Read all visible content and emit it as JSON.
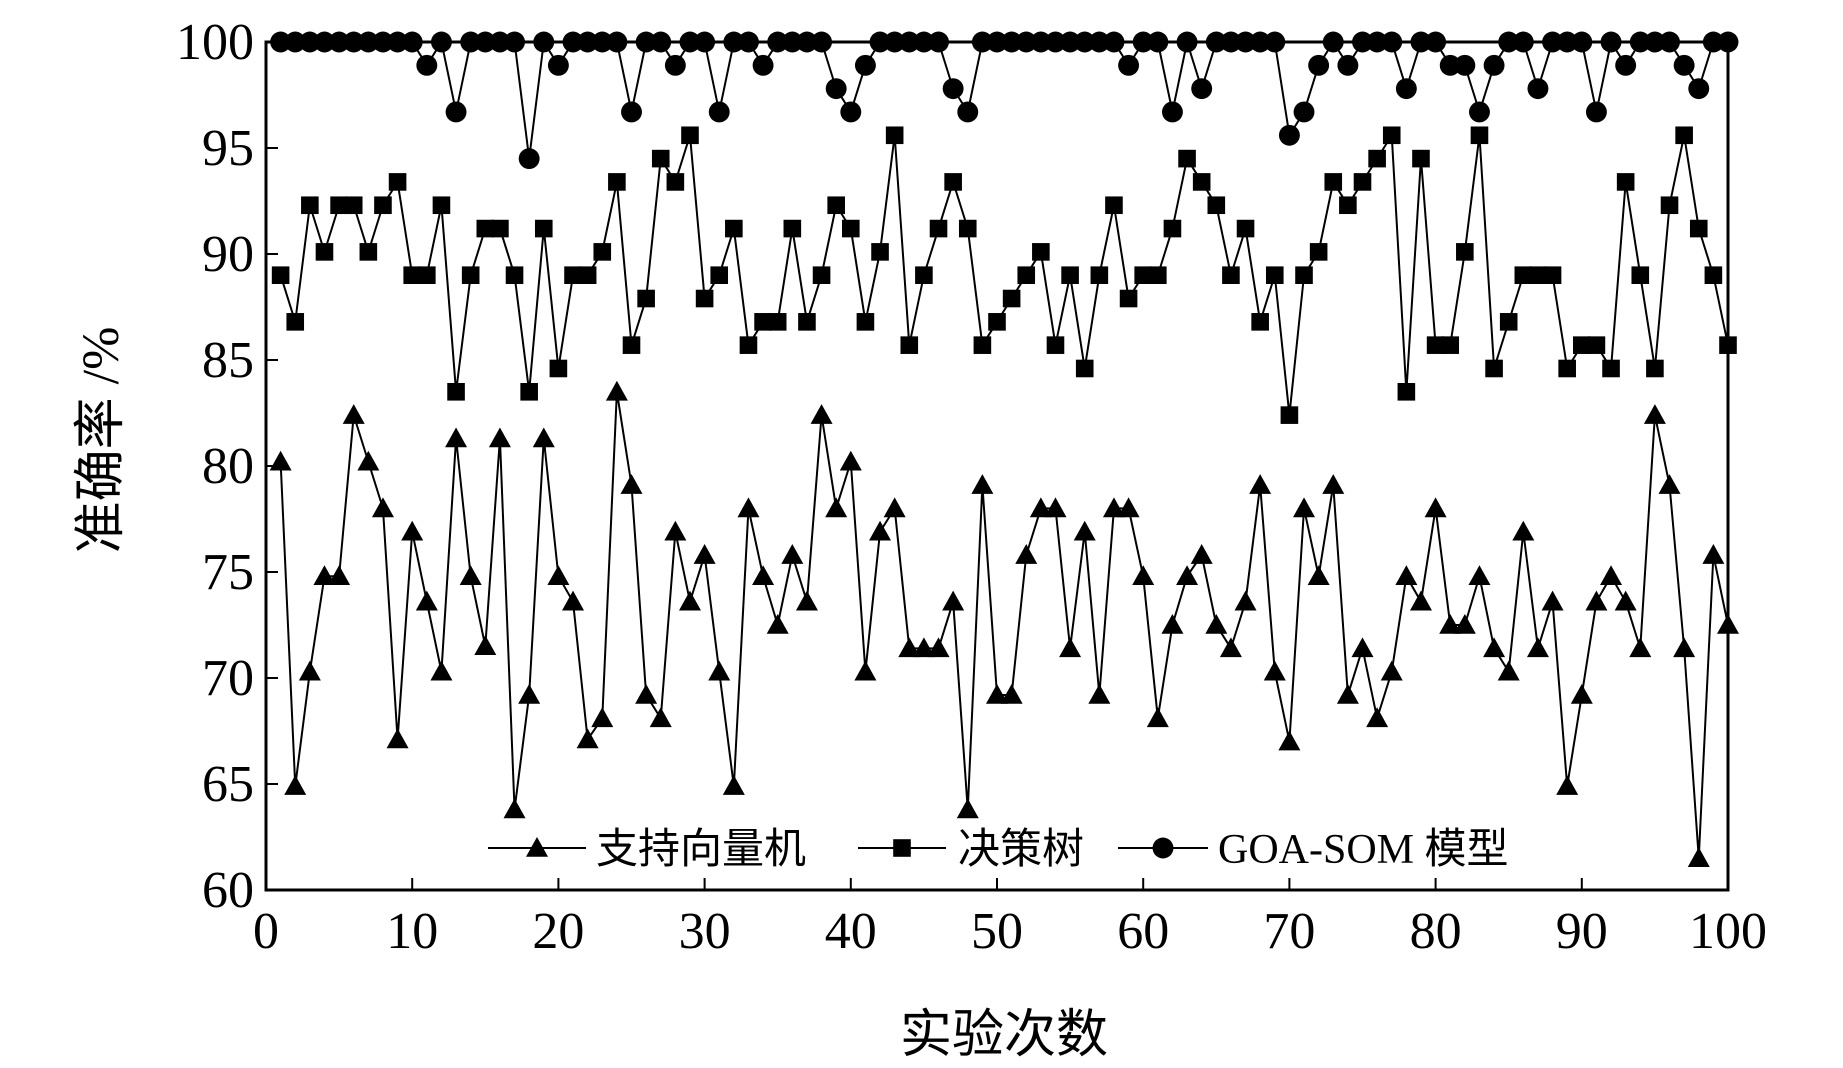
{
  "chart_data": {
    "type": "line",
    "title": "",
    "xlabel": "实验次数",
    "ylabel": "准确率 /%",
    "xlim": [
      0,
      100
    ],
    "ylim": [
      60,
      100
    ],
    "x_ticks": [
      0,
      10,
      20,
      30,
      40,
      50,
      60,
      70,
      80,
      90,
      100
    ],
    "y_ticks": [
      60,
      65,
      70,
      75,
      80,
      85,
      90,
      95,
      100
    ],
    "grid": false,
    "legend_position": "bottom",
    "x": [
      1,
      2,
      3,
      4,
      5,
      6,
      7,
      8,
      9,
      10,
      11,
      12,
      13,
      14,
      15,
      16,
      17,
      18,
      19,
      20,
      21,
      22,
      23,
      24,
      25,
      26,
      27,
      28,
      29,
      30,
      31,
      32,
      33,
      34,
      35,
      36,
      37,
      38,
      39,
      40,
      41,
      42,
      43,
      44,
      45,
      46,
      47,
      48,
      49,
      50,
      51,
      52,
      53,
      54,
      55,
      56,
      57,
      58,
      59,
      60,
      61,
      62,
      63,
      64,
      65,
      66,
      67,
      68,
      69,
      70,
      71,
      72,
      73,
      74,
      75,
      76,
      77,
      78,
      79,
      80,
      81,
      82,
      83,
      84,
      85,
      86,
      87,
      88,
      89,
      90,
      91,
      92,
      93,
      94,
      95,
      96,
      97,
      98,
      99,
      100
    ],
    "series": [
      {
        "name": "支持向量机",
        "marker": "triangle",
        "color": "#000000",
        "values": [
          80.2,
          64.9,
          70.3,
          74.8,
          74.8,
          82.4,
          80.2,
          78.0,
          67.1,
          76.9,
          73.6,
          70.3,
          81.3,
          74.8,
          71.5,
          81.3,
          63.8,
          69.2,
          81.3,
          74.8,
          73.6,
          67.1,
          68.1,
          83.5,
          79.1,
          69.2,
          68.1,
          76.9,
          73.6,
          75.8,
          70.3,
          64.9,
          78.0,
          74.8,
          72.5,
          75.8,
          73.6,
          82.4,
          78.0,
          80.2,
          70.3,
          76.9,
          78.0,
          71.4,
          71.4,
          71.4,
          73.6,
          63.8,
          79.1,
          69.2,
          69.2,
          75.8,
          78.0,
          78.0,
          71.4,
          76.9,
          69.2,
          78.0,
          78.0,
          74.8,
          68.1,
          72.5,
          74.8,
          75.8,
          72.5,
          71.4,
          73.6,
          79.1,
          70.3,
          67.0,
          78.0,
          74.8,
          79.1,
          69.2,
          71.4,
          68.1,
          70.3,
          74.8,
          73.6,
          78.0,
          72.5,
          72.5,
          74.8,
          71.4,
          70.3,
          76.9,
          71.4,
          73.6,
          64.9,
          69.2,
          73.6,
          74.8,
          73.6,
          71.4,
          82.4,
          79.1,
          71.4,
          61.5,
          75.8,
          72.5
        ]
      },
      {
        "name": "决策树",
        "marker": "square",
        "color": "#000000",
        "values": [
          89.0,
          86.8,
          92.3,
          90.1,
          92.3,
          92.3,
          90.1,
          92.3,
          93.4,
          89.0,
          89.0,
          92.3,
          83.5,
          89.0,
          91.2,
          91.2,
          89.0,
          83.5,
          91.2,
          84.6,
          89.0,
          89.0,
          90.1,
          93.4,
          85.7,
          87.9,
          94.5,
          93.4,
          95.6,
          87.9,
          89.0,
          91.2,
          85.7,
          86.8,
          86.8,
          91.2,
          86.8,
          89.0,
          92.3,
          91.2,
          86.8,
          90.1,
          95.6,
          85.7,
          89.0,
          91.2,
          93.4,
          91.2,
          85.7,
          86.8,
          87.9,
          89.0,
          90.1,
          85.7,
          89.0,
          84.6,
          89.0,
          92.3,
          87.9,
          89.0,
          89.0,
          91.2,
          94.5,
          93.4,
          92.3,
          89.0,
          91.2,
          86.8,
          89.0,
          82.4,
          89.0,
          90.1,
          93.4,
          92.3,
          93.4,
          94.5,
          95.6,
          83.5,
          94.5,
          85.7,
          85.7,
          90.1,
          95.6,
          84.6,
          86.8,
          89.0,
          89.0,
          89.0,
          84.6,
          85.7,
          85.7,
          84.6,
          93.4,
          89.0,
          84.6,
          92.3,
          95.6,
          91.2,
          89.0,
          85.7
        ]
      },
      {
        "name": "GOA-SOM 模型",
        "marker": "circle",
        "color": "#000000",
        "values": [
          100,
          100,
          100,
          100,
          100,
          100,
          100,
          100,
          100,
          100,
          98.9,
          100,
          96.7,
          100,
          100,
          100,
          100,
          94.5,
          100,
          98.9,
          100,
          100,
          100,
          100,
          96.7,
          100,
          100,
          98.9,
          100,
          100,
          96.7,
          100,
          100,
          98.9,
          100,
          100,
          100,
          100,
          97.8,
          96.7,
          98.9,
          100,
          100,
          100,
          100,
          100,
          97.8,
          96.7,
          100,
          100,
          100,
          100,
          100,
          100,
          100,
          100,
          100,
          100,
          98.9,
          100,
          100,
          96.7,
          100,
          97.8,
          100,
          100,
          100,
          100,
          100,
          95.6,
          96.7,
          98.9,
          100,
          98.9,
          100,
          100,
          100,
          97.8,
          100,
          100,
          98.9,
          98.9,
          96.7,
          98.9,
          100,
          100,
          97.8,
          100,
          100,
          100,
          96.7,
          100,
          98.9,
          100,
          100,
          100,
          98.9,
          97.8,
          100,
          100
        ]
      }
    ]
  }
}
